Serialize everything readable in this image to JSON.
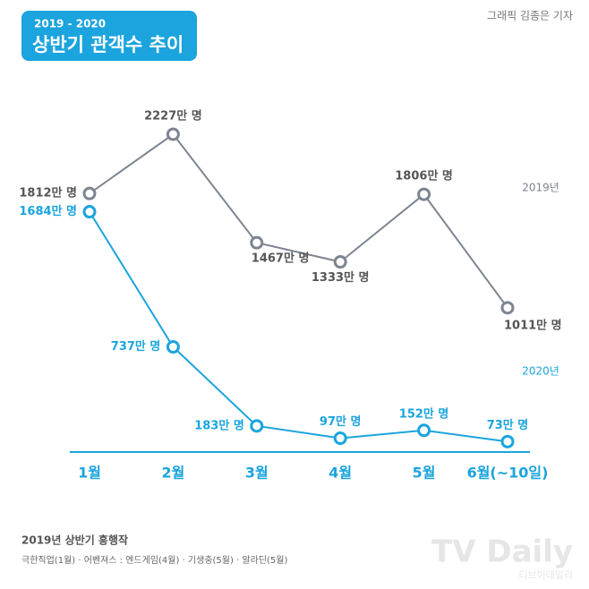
{
  "chart_data": {
    "type": "line",
    "badge_top": "2019 - 2020",
    "title": "상반기 관객수 추이",
    "credit": "그래픽 김종은 기자",
    "categories": [
      "1월",
      "2월",
      "3월",
      "4월",
      "5월",
      "6월(~10일)"
    ],
    "series": [
      {
        "name": "2019년",
        "color": "#7d8591",
        "values": [
          1812,
          2227,
          1467,
          1333,
          1806,
          1011
        ],
        "value_labels": [
          "1812만 명",
          "2227만 명",
          "1467만 명",
          "1333만 명",
          "1806만 명",
          "1011만 명"
        ]
      },
      {
        "name": "2020년",
        "color": "#1ba4dd",
        "values": [
          1684,
          737,
          183,
          97,
          152,
          73
        ],
        "value_labels": [
          "1684만 명",
          "737만 명",
          "183만 명",
          "97만 명",
          "152만 명",
          "73만 명"
        ]
      }
    ],
    "footnote_title": "2019년 상반기 흥행작",
    "footnote": "극한직업(1월) · 어벤져스 : 엔드게임(4월) · 기생충(5월) · 알라딘(5월)",
    "watermark": "TV Daily",
    "watermark_sub": "티브이데일리"
  }
}
